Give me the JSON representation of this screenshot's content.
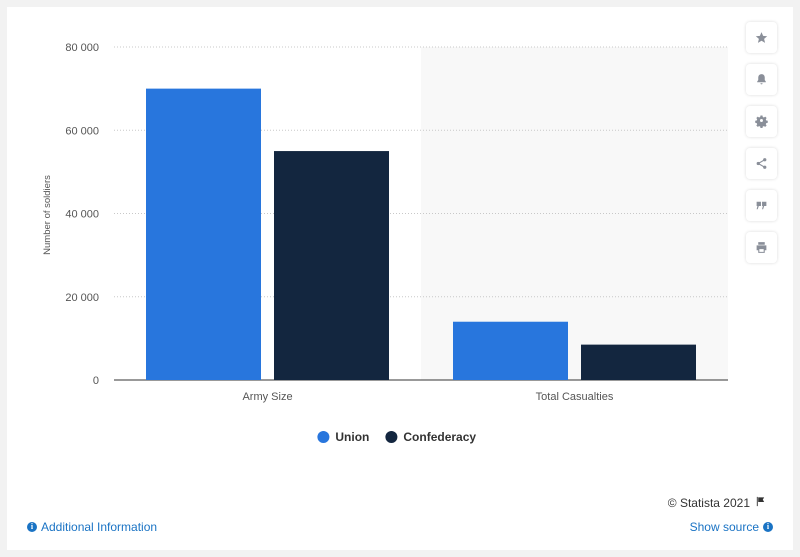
{
  "chart_data": {
    "type": "bar",
    "categories": [
      "Army Size",
      "Total Casualties"
    ],
    "series": [
      {
        "name": "Union",
        "color": "#2876dd",
        "values": [
          70000,
          14000
        ]
      },
      {
        "name": "Confederacy",
        "color": "#13263f",
        "values": [
          55000,
          8500
        ]
      }
    ],
    "ylabel": "Number of soldiers",
    "xlabel": "",
    "ylim": [
      0,
      80000
    ],
    "yticks": [
      0,
      20000,
      40000,
      60000,
      80000
    ],
    "ytick_labels": [
      "0",
      "20 000",
      "40 000",
      "60 000",
      "80 000"
    ],
    "grid": true,
    "legend_position": "bottom-center"
  },
  "sidebar": {
    "icons": [
      "star-icon",
      "bell-icon",
      "gear-icon",
      "share-icon",
      "quote-icon",
      "print-icon"
    ]
  },
  "footer": {
    "credit": "© Statista 2021",
    "additional_info": "Additional Information",
    "show_source": "Show source"
  }
}
